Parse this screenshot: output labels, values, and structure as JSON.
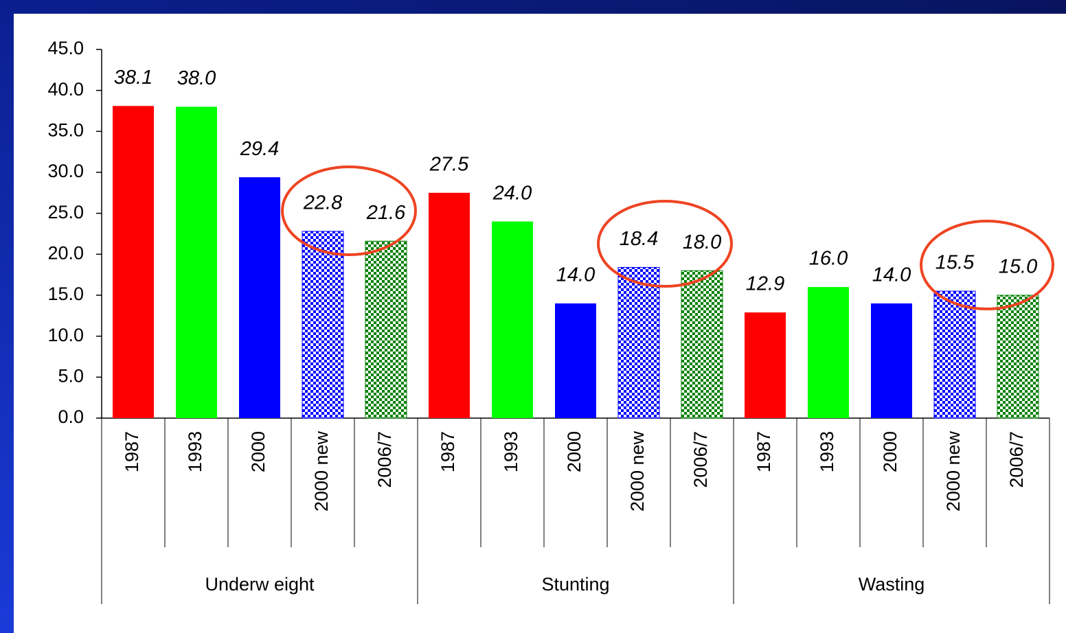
{
  "chart_data": {
    "type": "bar",
    "groups": [
      "Underw eight",
      "Stunting",
      "Wasting"
    ],
    "series": [
      {
        "name": "1987",
        "color": "#ff0000",
        "pattern": "solid",
        "values": [
          38.1,
          27.5,
          12.9
        ],
        "value_labels": [
          "38.1",
          "27.5",
          "12.9"
        ]
      },
      {
        "name": "1993",
        "color": "#00ff00",
        "pattern": "solid",
        "values": [
          38.0,
          24.0,
          16.0
        ],
        "value_labels": [
          "38.0",
          "24.0",
          "16.0"
        ]
      },
      {
        "name": "2000",
        "color": "#0000ff",
        "pattern": "solid",
        "values": [
          29.4,
          14.0,
          14.0
        ],
        "value_labels": [
          "29.4",
          "14.0",
          "14.0"
        ]
      },
      {
        "name": "2000 new",
        "color": "#0000ff",
        "pattern": "checker",
        "values": [
          22.8,
          18.4,
          15.5
        ],
        "value_labels": [
          "22.8",
          "18.4",
          "15.5"
        ]
      },
      {
        "name": "2006/7",
        "color": "#008000",
        "pattern": "checker",
        "values": [
          21.6,
          18.0,
          15.0
        ],
        "value_labels": [
          "21.6",
          "18.0",
          "15.0"
        ]
      }
    ],
    "ylim": [
      0,
      45
    ],
    "yticks": [
      {
        "value": 0,
        "label": "0.0"
      },
      {
        "value": 5,
        "label": "5.0"
      },
      {
        "value": 10,
        "label": "10.0"
      },
      {
        "value": 15,
        "label": "15.0"
      },
      {
        "value": 20,
        "label": "20.0"
      },
      {
        "value": 25,
        "label": "25.0"
      },
      {
        "value": 30,
        "label": "30.0"
      },
      {
        "value": 35,
        "label": "35.0"
      },
      {
        "value": 40,
        "label": "40.0"
      },
      {
        "value": 45,
        "label": "45.0"
      }
    ]
  }
}
